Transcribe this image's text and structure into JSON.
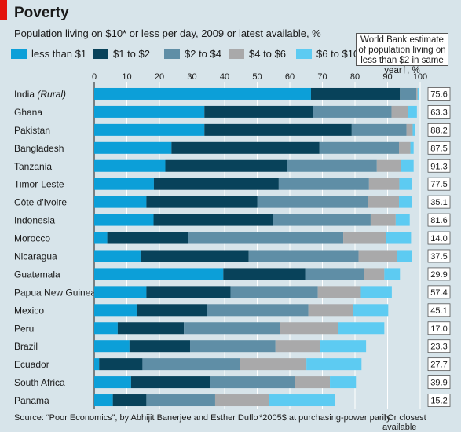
{
  "header": {
    "title": "Poverty",
    "subtitle": "Population living on $10* or less per day, 2009 or latest available, %",
    "note": "World Bank estimate of population living on less than $2 in same year†, %"
  },
  "footer": {
    "source": "Source: “Poor Economics”, by Abhijit Banerjee and Esther Duflo",
    "footnote_ppp": "*2005$ at purchasing-power parity",
    "footnote_latest": "†Or closest available"
  },
  "chart_data": {
    "type": "bar",
    "orientation": "horizontal",
    "stacked": true,
    "xlim": [
      0,
      100
    ],
    "xticks": [
      0,
      10,
      20,
      30,
      40,
      50,
      60,
      70,
      80,
      90,
      100
    ],
    "grid": true,
    "legend_position": "top",
    "categories": [
      "India (Rural)",
      "Ghana",
      "Pakistan",
      "Bangladesh",
      "Tanzania",
      "Timor-Leste",
      "Côte d'Ivoire",
      "Indonesia",
      "Morocco",
      "Nicaragua",
      "Guatemala",
      "Papua New Guinea",
      "Mexico",
      "Peru",
      "Brazil",
      "Ecuador",
      "South Africa",
      "Panama"
    ],
    "italic_suffix": {
      "India (Rural)": "(Rural)"
    },
    "series": [
      {
        "name": "less than $1",
        "color": "#0c9fd8",
        "values": [
          66.5,
          33.8,
          33.8,
          23.7,
          21.8,
          18.3,
          16.0,
          18.2,
          4.0,
          14.2,
          39.6,
          16.0,
          13.0,
          7.2,
          10.8,
          1.5,
          11.3,
          5.7
        ]
      },
      {
        "name": "$1 to $2",
        "color": "#08425a",
        "values": [
          27.3,
          33.4,
          45.2,
          45.4,
          37.3,
          38.3,
          34.0,
          36.6,
          24.7,
          33.2,
          25.1,
          25.8,
          21.5,
          20.3,
          18.6,
          13.3,
          24.2,
          10.3
        ]
      },
      {
        "name": "$2 to $4",
        "color": "#5f8ea6",
        "values": [
          5.0,
          24.0,
          16.8,
          24.4,
          27.6,
          27.7,
          34.0,
          30.0,
          47.7,
          33.7,
          18.1,
          26.8,
          31.2,
          29.5,
          26.2,
          29.9,
          26.0,
          21.1
        ]
      },
      {
        "name": "$4 to $6",
        "color": "#a9a9aa",
        "values": [
          0.4,
          5.0,
          1.9,
          3.5,
          7.5,
          9.3,
          9.5,
          7.7,
          13.2,
          11.7,
          6.2,
          13.2,
          13.7,
          17.9,
          13.8,
          20.4,
          10.8,
          16.5
        ]
      },
      {
        "name": "$6 to $10",
        "color": "#5dcbf2",
        "values": [
          0.3,
          2.8,
          0.8,
          1.0,
          3.8,
          3.9,
          4.0,
          4.3,
          7.6,
          4.7,
          4.8,
          9.5,
          10.8,
          14.1,
          14.0,
          16.9,
          8.0,
          20.2
        ]
      }
    ],
    "wb_under2": [
      75.6,
      63.3,
      88.2,
      87.5,
      91.3,
      77.5,
      35.1,
      81.6,
      14.0,
      37.5,
      29.9,
      57.4,
      45.1,
      17.0,
      23.3,
      27.7,
      39.9,
      15.2
    ]
  }
}
